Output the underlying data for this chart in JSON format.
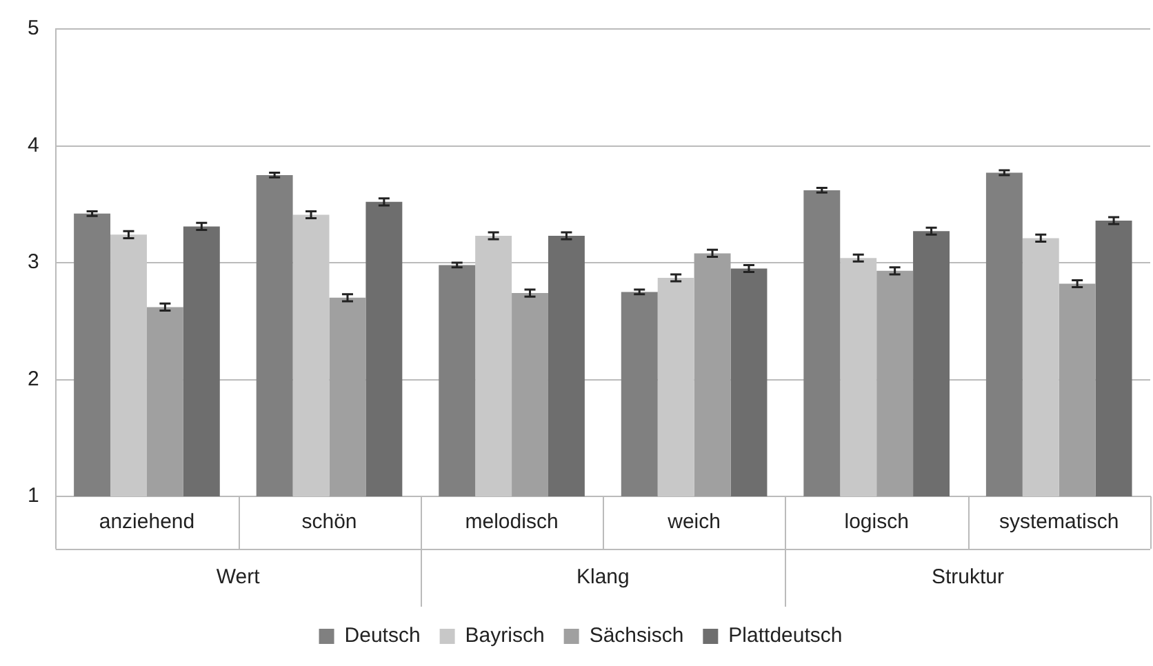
{
  "chart_data": {
    "type": "bar",
    "categories": [
      "anziehend",
      "schön",
      "melodisch",
      "weich",
      "logisch",
      "systematisch"
    ],
    "annotations": [
      "Wert",
      "Klang",
      "Struktur"
    ],
    "series": [
      {
        "name": "Deutsch",
        "color": "#808080",
        "values": [
          3.42,
          3.75,
          2.98,
          2.75,
          3.62,
          3.77
        ],
        "errors": [
          0.02,
          0.02,
          0.02,
          0.02,
          0.02,
          0.02
        ]
      },
      {
        "name": "Bayrisch",
        "color": "#c8c8c8",
        "values": [
          3.24,
          3.41,
          3.23,
          2.87,
          3.04,
          3.21
        ],
        "errors": [
          0.03,
          0.03,
          0.03,
          0.03,
          0.03,
          0.03
        ]
      },
      {
        "name": "Sächsisch",
        "color": "#a0a0a0",
        "values": [
          2.62,
          2.7,
          2.74,
          3.08,
          2.93,
          2.82
        ],
        "errors": [
          0.03,
          0.03,
          0.03,
          0.03,
          0.03,
          0.03
        ]
      },
      {
        "name": "Plattdeutsch",
        "color": "#6e6e6e",
        "values": [
          3.31,
          3.52,
          3.23,
          2.95,
          3.27,
          3.36
        ],
        "errors": [
          0.03,
          0.03,
          0.03,
          0.03,
          0.03,
          0.03
        ]
      }
    ],
    "ylim": [
      1,
      5
    ],
    "yticks": [
      1,
      2,
      3,
      4,
      5
    ],
    "grid": "y",
    "legend": "bottom"
  }
}
